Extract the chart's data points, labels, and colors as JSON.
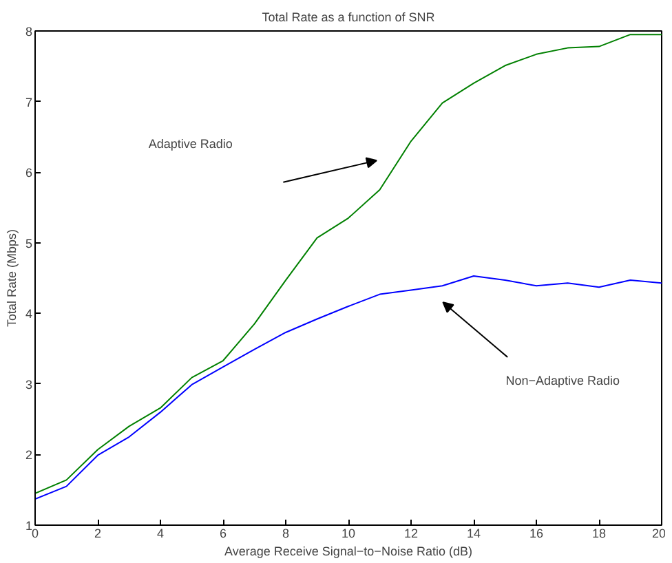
{
  "chart_data": {
    "type": "line",
    "title": "Total Rate as a function of SNR",
    "xlabel": "Average Receive Signal−to−Noise Ratio (dB)",
    "ylabel": "Total Rate (Mbps)",
    "x": [
      0,
      1,
      2,
      3,
      4,
      5,
      6,
      7,
      8,
      9,
      10,
      11,
      12,
      13,
      14,
      15,
      16,
      17,
      18,
      19,
      20
    ],
    "series": [
      {
        "color": "#008000",
        "values": [
          1.45,
          1.64,
          2.07,
          2.4,
          2.66,
          3.09,
          3.33,
          3.85,
          4.47,
          5.07,
          5.35,
          5.75,
          6.44,
          6.98,
          7.26,
          7.51,
          7.67,
          7.76,
          7.78,
          7.95,
          7.95
        ]
      },
      {
        "color": "#0000ff",
        "values": [
          1.37,
          1.55,
          1.99,
          2.25,
          2.6,
          2.99,
          3.24,
          3.49,
          3.73,
          3.92,
          4.1,
          4.27,
          4.33,
          4.39,
          4.53,
          4.47,
          4.39,
          4.43,
          4.37,
          4.47,
          4.43
        ]
      }
    ],
    "annotations": [
      "Adaptive Radio",
      "Non−Adaptive Radio"
    ],
    "xlim": [
      0,
      20
    ],
    "ylim": [
      1,
      8
    ],
    "xticks": [
      0,
      2,
      4,
      6,
      8,
      10,
      12,
      14,
      16,
      18,
      20
    ],
    "yticks": [
      1,
      2,
      3,
      4,
      5,
      6,
      7,
      8
    ],
    "grid": false
  }
}
